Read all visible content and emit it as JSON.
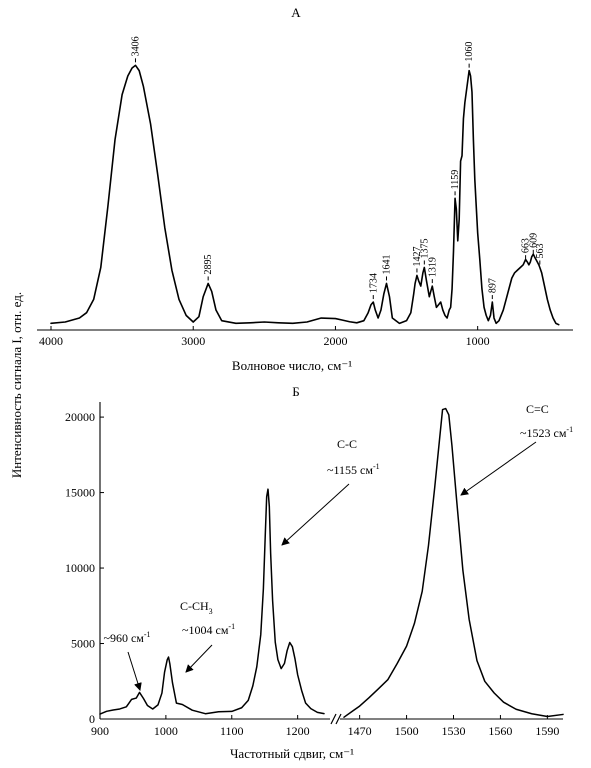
{
  "y_axis_shared_label": "Интенсивность сигнала I,  отн. ед.",
  "colors": {
    "line": "#000000",
    "background": "#ffffff"
  },
  "chart_data": [
    {
      "type": "line",
      "panel_label": "А",
      "xlabel": "Волновое число, см⁻¹",
      "x_reversed": true,
      "xlim": [
        4000,
        400
      ],
      "ylim": [
        0,
        1.0
      ],
      "show_y_ticks": false,
      "grid": false,
      "x_ticks": [
        4000,
        3000,
        2000,
        1000
      ],
      "x_tick_labels": [
        "4000",
        "3000",
        "2000",
        "1000"
      ],
      "series": [
        {
          "x": [
            4000,
            3900,
            3800,
            3750,
            3700,
            3650,
            3600,
            3550,
            3500,
            3460,
            3430,
            3406,
            3380,
            3350,
            3300,
            3250,
            3200,
            3150,
            3100,
            3050,
            3000,
            2960,
            2930,
            2895,
            2870,
            2840,
            2800,
            2700,
            2600,
            2500,
            2400,
            2300,
            2200,
            2100,
            2000,
            1950,
            1900,
            1850,
            1800,
            1770,
            1750,
            1734,
            1720,
            1700,
            1680,
            1660,
            1641,
            1620,
            1600,
            1550,
            1500,
            1470,
            1450,
            1440,
            1427,
            1415,
            1400,
            1385,
            1375,
            1360,
            1340,
            1330,
            1319,
            1305,
            1290,
            1275,
            1260,
            1245,
            1230,
            1215,
            1200,
            1190,
            1180,
            1170,
            1159,
            1150,
            1140,
            1130,
            1120,
            1110,
            1100,
            1090,
            1080,
            1070,
            1060,
            1050,
            1040,
            1030,
            1020,
            1010,
            1000,
            985,
            970,
            955,
            940,
            925,
            910,
            897,
            885,
            870,
            850,
            820,
            800,
            780,
            760,
            740,
            720,
            700,
            680,
            663,
            650,
            640,
            630,
            620,
            609,
            600,
            590,
            580,
            570,
            563,
            550,
            530,
            510,
            490,
            470,
            450,
            430
          ],
          "y": [
            0.01,
            0.015,
            0.03,
            0.05,
            0.1,
            0.22,
            0.45,
            0.7,
            0.87,
            0.94,
            0.97,
            0.98,
            0.96,
            0.9,
            0.76,
            0.57,
            0.37,
            0.21,
            0.1,
            0.04,
            0.015,
            0.035,
            0.11,
            0.16,
            0.13,
            0.06,
            0.02,
            0.01,
            0.012,
            0.015,
            0.012,
            0.01,
            0.015,
            0.03,
            0.028,
            0.022,
            0.016,
            0.012,
            0.02,
            0.05,
            0.08,
            0.09,
            0.06,
            0.03,
            0.06,
            0.12,
            0.16,
            0.11,
            0.03,
            0.01,
            0.02,
            0.05,
            0.12,
            0.16,
            0.19,
            0.17,
            0.15,
            0.2,
            0.22,
            0.17,
            0.11,
            0.13,
            0.15,
            0.11,
            0.07,
            0.08,
            0.09,
            0.06,
            0.04,
            0.03,
            0.06,
            0.07,
            0.14,
            0.28,
            0.48,
            0.44,
            0.32,
            0.4,
            0.62,
            0.64,
            0.78,
            0.84,
            0.88,
            0.92,
            0.96,
            0.94,
            0.88,
            0.7,
            0.55,
            0.45,
            0.35,
            0.25,
            0.14,
            0.07,
            0.04,
            0.02,
            0.04,
            0.09,
            0.03,
            0.01,
            0.02,
            0.06,
            0.1,
            0.14,
            0.18,
            0.2,
            0.21,
            0.22,
            0.23,
            0.25,
            0.24,
            0.23,
            0.24,
            0.26,
            0.27,
            0.26,
            0.25,
            0.24,
            0.23,
            0.22,
            0.2,
            0.15,
            0.1,
            0.06,
            0.03,
            0.01,
            0.005
          ]
        }
      ],
      "annotations": [
        {
          "x": 3406,
          "y": 0.98,
          "text": "3406"
        },
        {
          "x": 2895,
          "y": 0.16,
          "text": "2895"
        },
        {
          "x": 1734,
          "y": 0.09,
          "text": "1734"
        },
        {
          "x": 1641,
          "y": 0.16,
          "text": "1641"
        },
        {
          "x": 1427,
          "y": 0.19,
          "text": "1427"
        },
        {
          "x": 1375,
          "y": 0.22,
          "text": "1375"
        },
        {
          "x": 1319,
          "y": 0.15,
          "text": "1319"
        },
        {
          "x": 1159,
          "y": 0.48,
          "text": "1159"
        },
        {
          "x": 1060,
          "y": 0.96,
          "text": "1060"
        },
        {
          "x": 897,
          "y": 0.09,
          "text": "897"
        },
        {
          "x": 663,
          "y": 0.24,
          "text": "663"
        },
        {
          "x": 609,
          "y": 0.26,
          "text": "609"
        },
        {
          "x": 563,
          "y": 0.22,
          "text": "563"
        }
      ]
    },
    {
      "type": "line",
      "panel_label": "Б",
      "xlabel": "Частотный сдвиг, см⁻¹",
      "x_broken": true,
      "x_segments": [
        {
          "xlim": [
            900,
            1240
          ]
        },
        {
          "xlim": [
            1460,
            1600
          ]
        }
      ],
      "ylim": [
        0,
        21000
      ],
      "grid": false,
      "y_ticks": [
        0,
        5000,
        10000,
        15000,
        20000
      ],
      "y_tick_labels": [
        "0",
        "5000",
        "10000",
        "15000",
        "20000"
      ],
      "x_ticks": [
        900,
        1000,
        1100,
        1200,
        1470,
        1500,
        1530,
        1560,
        1590
      ],
      "x_tick_labels": [
        "900",
        "1000",
        "1100",
        "1200",
        "1470",
        "1500",
        "1530",
        "1560",
        "1590"
      ],
      "series": [
        {
          "segments": [
            {
              "x": [
                900,
                910,
                920,
                930,
                940,
                948,
                955,
                960,
                966,
                972,
                980,
                988,
                994,
                998,
                1002,
                1004,
                1006,
                1010,
                1016,
                1025,
                1040,
                1060,
                1080,
                1100,
                1115,
                1125,
                1132,
                1138,
                1144,
                1148,
                1151,
                1153,
                1155,
                1157,
                1159,
                1162,
                1166,
                1170,
                1175,
                1180,
                1184,
                1188,
                1192,
                1196,
                1200,
                1206,
                1212,
                1220,
                1230,
                1240
              ],
              "y": [
                400,
                500,
                450,
                550,
                800,
                1200,
                1500,
                1600,
                1300,
                900,
                700,
                900,
                1800,
                3200,
                4000,
                4100,
                3700,
                2400,
                1200,
                800,
                600,
                500,
                450,
                550,
                800,
                1400,
                2200,
                3300,
                5500,
                8500,
                12500,
                14800,
                15300,
                14200,
                11000,
                7800,
                5000,
                3800,
                3400,
                3700,
                4500,
                5000,
                4700,
                3900,
                2900,
                1900,
                1200,
                800,
                600,
                400
              ]
            },
            {
              "x": [
                1460,
                1466,
                1470,
                1476,
                1482,
                1488,
                1494,
                1500,
                1505,
                1510,
                1514,
                1518,
                1521,
                1523,
                1525,
                1527,
                1529,
                1532,
                1536,
                1540,
                1545,
                1550,
                1556,
                1562,
                1570,
                1580,
                1590,
                1600
              ],
              "y": [
                200,
                700,
                1000,
                1400,
                2000,
                2700,
                3600,
                4800,
                6300,
                8500,
                11500,
                15300,
                18600,
                20500,
                20700,
                20200,
                18200,
                14500,
                9800,
                6500,
                3900,
                2500,
                1600,
                1000,
                500,
                300,
                250,
                350
              ]
            }
          ]
        }
      ],
      "annotations": [
        {
          "x": 960,
          "y": 1500,
          "text_parts": [
            "~960 см",
            "-1"
          ]
        },
        {
          "x": 1004,
          "y": 4000,
          "text_parts": [
            "C-CH",
            "3"
          ],
          "text2_parts": [
            "~1004 см",
            "-1"
          ]
        },
        {
          "x": 1155,
          "y": 15300,
          "text": "C-C",
          "text2_parts": [
            "~1155 см",
            "-1"
          ]
        },
        {
          "x": 1523,
          "y": 20700,
          "text": "C=C",
          "text2_parts": [
            "~1523 см",
            "-1"
          ]
        }
      ]
    }
  ]
}
